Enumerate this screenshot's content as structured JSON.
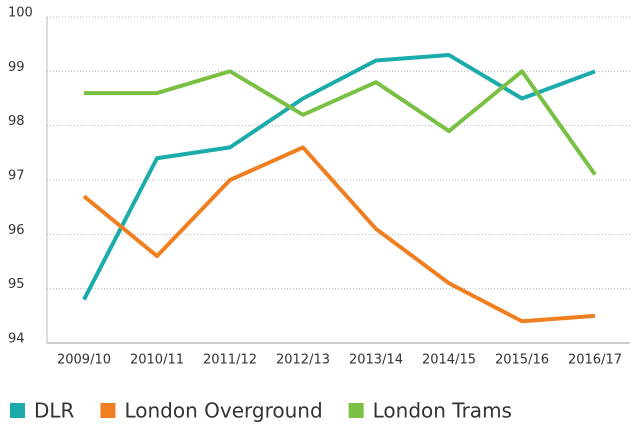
{
  "chart_data": {
    "type": "line",
    "categories": [
      "2009/10",
      "2010/11",
      "2011/12",
      "2012/13",
      "2013/14",
      "2014/15",
      "2015/16",
      "2016/17"
    ],
    "series": [
      {
        "name": "DLR",
        "color": "#1aabaa",
        "values": [
          94.8,
          97.4,
          97.6,
          98.5,
          99.2,
          99.3,
          98.5,
          99.0
        ]
      },
      {
        "name": "London Overground",
        "color": "#f07f22",
        "values": [
          96.7,
          95.6,
          97.0,
          97.6,
          96.1,
          95.1,
          94.4,
          94.5
        ]
      },
      {
        "name": "London Trams",
        "color": "#7ac143",
        "values": [
          98.6,
          98.6,
          99.0,
          98.2,
          98.8,
          97.9,
          99.0,
          97.1
        ]
      }
    ],
    "ylim": [
      94,
      100
    ],
    "yticks": [
      94,
      95,
      96,
      97,
      98,
      99,
      100
    ],
    "grid": true,
    "legend": "bottom"
  }
}
